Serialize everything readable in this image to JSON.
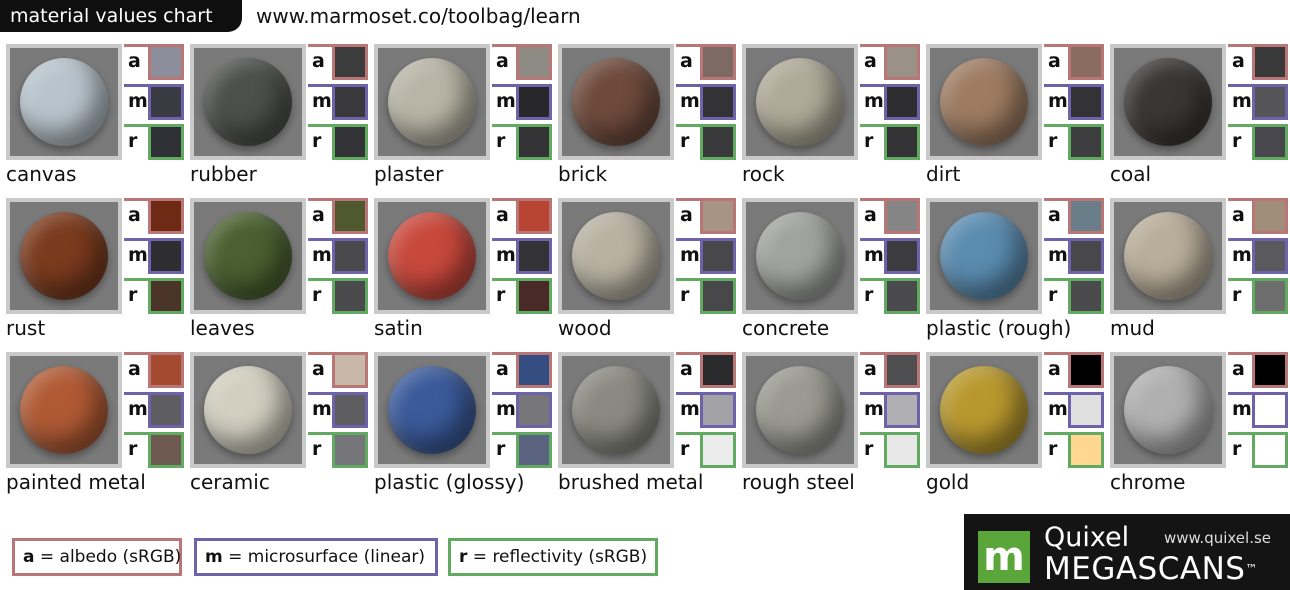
{
  "header": {
    "title": "material values chart",
    "url": "www.marmoset.co/toolbag/learn"
  },
  "labels": {
    "a": "a",
    "m": "m",
    "r": "r"
  },
  "materials": [
    {
      "name": "canvas",
      "sphere": "#b8c4cc",
      "a": "#8c8e9b",
      "m": "#3a3a42",
      "r": "#2f2f36"
    },
    {
      "name": "rubber",
      "sphere": "#4b504c",
      "a": "#3c3c3c",
      "m": "#3a3a3d",
      "r": "#343438"
    },
    {
      "name": "plaster",
      "sphere": "#b9b5a6",
      "a": "#8e8b85",
      "m": "#28282a",
      "r": "#333336"
    },
    {
      "name": "brick",
      "sphere": "#6e4a3c",
      "a": "#7c6a63",
      "m": "#333336",
      "r": "#3a3a3c"
    },
    {
      "name": "rock",
      "sphere": "#b0aa98",
      "a": "#9a9286",
      "m": "#2e2e30",
      "r": "#333336"
    },
    {
      "name": "dirt",
      "sphere": "#9e7c62",
      "a": "#8a6c60",
      "m": "#333335",
      "r": "#3e3e40"
    },
    {
      "name": "coal",
      "sphere": "#3a3634",
      "a": "#3a3a3a",
      "m": "#555558",
      "r": "#47474d"
    },
    {
      "name": "rust",
      "sphere": "#7a3a1e",
      "a": "#6e2a14",
      "m": "#2e2e30",
      "r": "#4a3428"
    },
    {
      "name": "leaves",
      "sphere": "#4a6030",
      "a": "#50582e",
      "m": "#4a4a4c",
      "r": "#4a4a4c"
    },
    {
      "name": "satin",
      "sphere": "#c8483c",
      "a": "#b84434",
      "m": "#333336",
      "r": "#4a2a28"
    },
    {
      "name": "wood",
      "sphere": "#b9b2a2",
      "a": "#a89484",
      "m": "#48484a",
      "r": "#48484a"
    },
    {
      "name": "concrete",
      "sphere": "#a0a49e",
      "a": "#858585",
      "m": "#3c3c3e",
      "r": "#4a4a4c"
    },
    {
      "name": "plastic (rough)",
      "sphere": "#5a8cb0",
      "a": "#6a7e8a",
      "m": "#48484a",
      "r": "#4a4a4c"
    },
    {
      "name": "mud",
      "sphere": "#b8ae9a",
      "a": "#a08e7a",
      "m": "#5a5a5c",
      "r": "#6e6e6e"
    },
    {
      "name": "painted metal",
      "sphere": "#b05a34",
      "a": "#a44a30",
      "m": "#5e5e62",
      "r": "#6e5a50"
    },
    {
      "name": "ceramic",
      "sphere": "#d2cfc0",
      "a": "#c8b8aa",
      "m": "#5e5e60",
      "r": "#75757a"
    },
    {
      "name": "plastic (glossy)",
      "sphere": "#3a5a9a",
      "a": "#344e82",
      "m": "#77777a",
      "r": "#5a6480"
    },
    {
      "name": "brushed metal",
      "sphere": "#8a8a82",
      "a": "#2a2a2c",
      "m": "#a2a2a6",
      "r": "#ececec"
    },
    {
      "name": "rough steel",
      "sphere": "#9a9a92",
      "a": "#4e4e50",
      "m": "#b0b0b4",
      "r": "#e8e8e8"
    },
    {
      "name": "gold",
      "sphere": "#b8982e",
      "a": "#000000",
      "m": "#e0e0e0",
      "r": "#ffd790"
    },
    {
      "name": "chrome",
      "sphere": "#b0b0b0",
      "a": "#000000",
      "m": "#ffffff",
      "r": "#ffffff"
    }
  ],
  "legend": {
    "a_key": "a",
    "a_text": " = albedo (sRGB)",
    "m_key": "m",
    "m_text": " = microsurface (linear)",
    "r_key": "r",
    "r_text": " = reflectivity (sRGB)"
  },
  "logo": {
    "mark": "m",
    "brand": "Quixel",
    "site": "www.quixel.se",
    "product": "MEGASCANS",
    "tm": "™"
  },
  "colors": {
    "albedo_border": "#b87676",
    "microsurface_border": "#6e62a8",
    "reflectivity_border": "#62aa62"
  }
}
